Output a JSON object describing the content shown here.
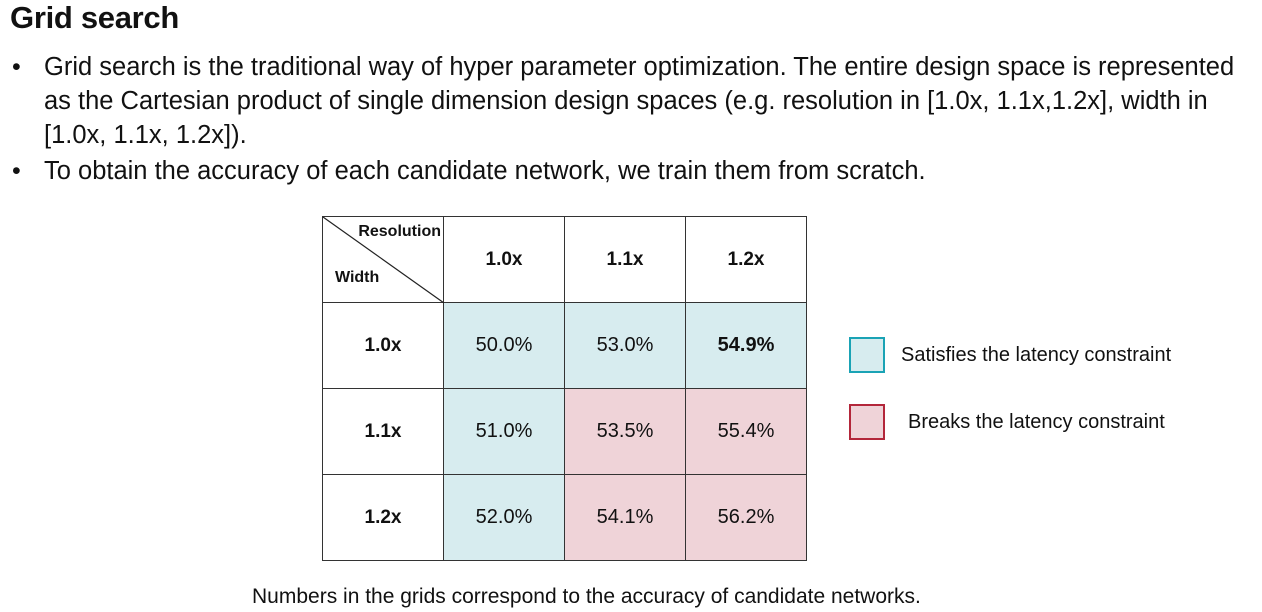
{
  "title": "Grid search",
  "bullets": [
    "Grid search is the traditional way of hyper parameter optimization. The entire design space is represented as the Cartesian product of single dimension design spaces (e.g. resolution in [1.0x, 1.1x,1.2x], width in [1.0x, 1.1x, 1.2x]).",
    "To obtain the accuracy of each candidate network, we train them from scratch."
  ],
  "grid": {
    "corner": {
      "column_axis": "Resolution",
      "row_axis": "Width"
    },
    "columns": [
      "1.0x",
      "1.1x",
      "1.2x"
    ],
    "rows": [
      {
        "label": "1.0x",
        "cells": [
          "50.0%",
          "53.0%",
          "54.9%"
        ]
      },
      {
        "label": "1.1x",
        "cells": [
          "51.0%",
          "53.5%",
          "55.4%"
        ]
      },
      {
        "label": "1.2x",
        "cells": [
          "52.0%",
          "54.1%",
          "56.2%"
        ]
      }
    ],
    "cell_status": [
      [
        "satisfies",
        "satisfies",
        "satisfies"
      ],
      [
        "satisfies",
        "breaks",
        "breaks"
      ],
      [
        "satisfies",
        "breaks",
        "breaks"
      ]
    ],
    "best_cell": "54.9%"
  },
  "legend": [
    {
      "label": "Satisfies the latency constraint",
      "fill": "#d7ecef",
      "border": "#1aa3b5"
    },
    {
      "label": "Breaks the latency constraint",
      "fill": "#efd3d8",
      "border": "#b3263a"
    }
  ],
  "caption": "Numbers in the grids correspond to the accuracy of candidate networks."
}
